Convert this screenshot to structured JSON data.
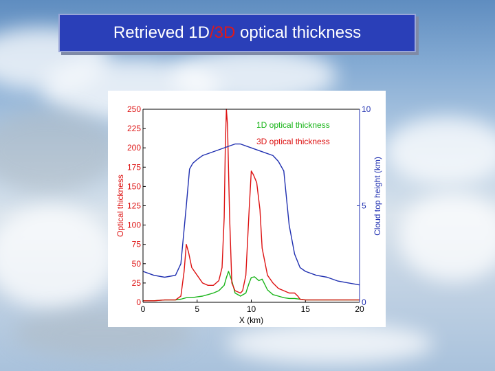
{
  "slide": {
    "title_part1": "Retrieved 1D",
    "title_slash": "/",
    "title_part2": "3D",
    "title_part3": " optical thickness"
  },
  "colors": {
    "title_bg": "#2a3fb8",
    "title_highlight": "#e01818",
    "series_1d": "#18b418",
    "series_3d": "#dd1111",
    "series_cloud_top": "#1f2fb0"
  },
  "chart_data": {
    "type": "line",
    "xlabel": "X (km)",
    "ylabel_left": "Optical thickness",
    "ylabel_right": "Cloud top height (km)",
    "xlim": [
      0,
      20
    ],
    "ylim_left": [
      0,
      250
    ],
    "ylim_right": [
      0,
      10
    ],
    "x_ticks": [
      0,
      5,
      10,
      15,
      20
    ],
    "y_ticks_left": [
      0,
      25,
      50,
      75,
      100,
      125,
      150,
      175,
      200,
      225,
      250
    ],
    "y_ticks_right": [
      0,
      5,
      10
    ],
    "legend": {
      "placement": "top-right",
      "entries": [
        "1D optical thickness",
        "3D optical thickness"
      ]
    },
    "series": [
      {
        "name": "1D optical thickness",
        "axis": "left",
        "x": [
          0,
          1,
          2,
          3,
          3.5,
          4,
          4.5,
          5,
          5.5,
          6,
          6.5,
          7,
          7.5,
          7.7,
          7.9,
          8.2,
          8.5,
          9,
          9.5,
          9.8,
          10,
          10.3,
          10.7,
          11,
          11.5,
          12,
          12.5,
          13,
          13.5,
          14,
          14.5,
          15,
          16,
          17,
          18,
          19,
          20
        ],
        "y": [
          2,
          2,
          3,
          3,
          4,
          6,
          6,
          7,
          8,
          10,
          12,
          15,
          22,
          32,
          40,
          28,
          12,
          8,
          12,
          25,
          32,
          33,
          28,
          30,
          16,
          10,
          8,
          6,
          5,
          5,
          4,
          3,
          3,
          3,
          3,
          3,
          3
        ]
      },
      {
        "name": "3D optical thickness",
        "axis": "left",
        "x": [
          0,
          1,
          2,
          3,
          3.5,
          3.8,
          4,
          4.2,
          4.5,
          5,
          5.5,
          6,
          6.5,
          7,
          7.3,
          7.5,
          7.6,
          7.7,
          7.8,
          8,
          8.2,
          8.5,
          9,
          9.2,
          9.5,
          9.8,
          10,
          10.2,
          10.5,
          10.8,
          11,
          11.5,
          12,
          12.5,
          13,
          13.5,
          14,
          14.3,
          14.5,
          15,
          16,
          17,
          18,
          19,
          20
        ],
        "y": [
          2,
          2,
          3,
          3,
          8,
          40,
          75,
          65,
          45,
          35,
          25,
          22,
          22,
          28,
          45,
          110,
          200,
          250,
          230,
          110,
          25,
          15,
          12,
          15,
          35,
          120,
          170,
          165,
          155,
          120,
          70,
          35,
          25,
          18,
          15,
          12,
          12,
          8,
          4,
          3,
          3,
          3,
          3,
          3,
          3
        ]
      },
      {
        "name": "Cloud top height",
        "axis": "right",
        "x": [
          0,
          1,
          2,
          3,
          3.5,
          4,
          4.3,
          4.6,
          5,
          5.5,
          6,
          7,
          8,
          8.5,
          9,
          10,
          11,
          12,
          12.5,
          13,
          13.5,
          14,
          14.5,
          15,
          16,
          17,
          18,
          19,
          20
        ],
        "y": [
          1.6,
          1.4,
          1.3,
          1.4,
          2.0,
          5.0,
          6.9,
          7.2,
          7.4,
          7.6,
          7.7,
          7.9,
          8.1,
          8.2,
          8.2,
          8.0,
          7.8,
          7.6,
          7.3,
          6.8,
          4.0,
          2.5,
          1.8,
          1.6,
          1.4,
          1.3,
          1.1,
          1.0,
          0.9
        ]
      }
    ]
  }
}
